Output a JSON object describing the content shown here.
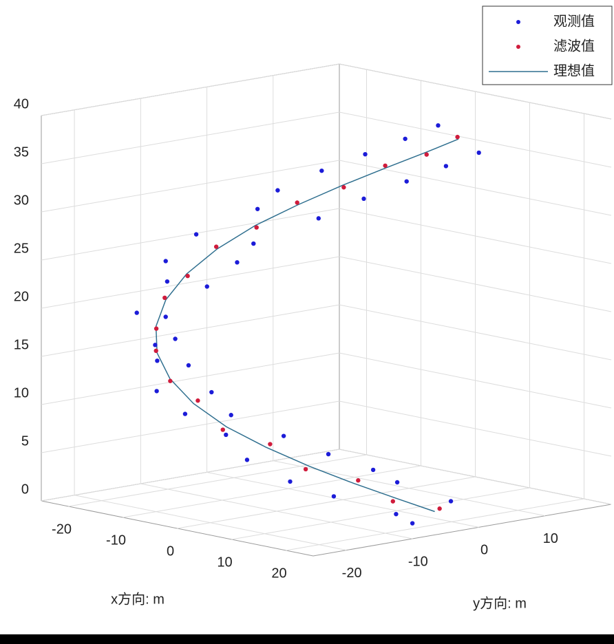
{
  "chart_data": {
    "type": "scatter3d",
    "xlabel": "x方向: m",
    "ylabel": "y方向: m",
    "xlim": [
      -25,
      25
    ],
    "ylim": [
      -25,
      20
    ],
    "zlim": [
      0,
      40
    ],
    "xticks": [
      -20,
      -10,
      0,
      10,
      20
    ],
    "yticks": [
      -20,
      -10,
      0,
      10
    ],
    "zticks": [
      0,
      5,
      10,
      15,
      20,
      25,
      30,
      35,
      40
    ],
    "grid": true,
    "legend": "top-right",
    "series": [
      {
        "name": "观测值",
        "color": "#1c1cd8",
        "mode": "markers",
        "x": [
          24.5,
          21.2,
          23.8,
          20.6,
          21.9,
          18.8,
          15.4,
          18.9,
          14.7,
          11.5,
          9.9,
          6.4,
          4.6,
          1.2,
          -0.6,
          -3.9,
          -5.4,
          -8.8,
          -12.8,
          -9.5,
          -12.6,
          -16.1,
          -18.2,
          -14.5,
          -15.3,
          -18.8,
          -18.0,
          -14.6,
          -12.5,
          -16.0,
          -12.9,
          -9.3,
          -5.2,
          -8.8,
          -4.0,
          -0.4,
          4.8,
          1.2
        ],
        "y": [
          -3.8,
          -6.9,
          -11.5,
          -8.7,
          -13.4,
          -16.8,
          -20.6,
          -17.7,
          -21.0,
          -23.9,
          -25.0,
          -22.9,
          -23.6,
          -24.8,
          -22.8,
          -24.9,
          -23.9,
          -20.8,
          -20.6,
          -17.5,
          -16.4,
          -13.3,
          -11.8,
          -8.6,
          -3.4,
          -6.7,
          1.9,
          -1.5,
          6.6,
          3.3,
          7.4,
          10.8,
          13.9,
          10.6,
          12.7,
          15.9,
          16.6,
          13.4
        ],
        "z": [
          3.1,
          0.8,
          2.6,
          5.2,
          7.2,
          4.5,
          6.1,
          9.0,
          10.8,
          8.3,
          12.9,
          10.2,
          14.5,
          12.0,
          16.6,
          13.8,
          18.3,
          15.9,
          20.4,
          17.7,
          19.5,
          22.4,
          24.1,
          21.5,
          23.3,
          26.2,
          27.9,
          25.1,
          27.0,
          29.9,
          31.8,
          28.9,
          30.8,
          33.6,
          35.5,
          32.7,
          34.6,
          37.4
        ]
      },
      {
        "name": "滤波值",
        "color": "#d01c3c",
        "mode": "markers",
        "x": [
          23.4,
          22.0,
          20.6,
          16.8,
          13.3,
          7.9,
          3.3,
          -2.5,
          -6.7,
          -11.4,
          -14.0,
          -16.6,
          -16.7,
          -16.6,
          -14.0,
          -11.4,
          -6.7,
          -2.5,
          3.3
        ],
        "y": [
          -4.6,
          -10.5,
          -14.6,
          -19.4,
          -21.9,
          -24.6,
          -24.6,
          -24.0,
          -22.7,
          -18.8,
          -15.4,
          -9.8,
          -5.4,
          0.6,
          4.6,
          9.5,
          11.9,
          14.7,
          14.6
        ],
        "z": [
          2.3,
          3.6,
          6.1,
          7.4,
          9.9,
          11.1,
          13.6,
          14.9,
          17.4,
          18.7,
          21.2,
          22.5,
          25.0,
          26.3,
          28.7,
          30.0,
          32.5,
          33.8,
          36.3
        ]
      },
      {
        "name": "理想值",
        "color": "#2f6f8f",
        "mode": "line",
        "x": [
          23,
          22.3,
          20.3,
          17.1,
          13,
          8.2,
          3,
          -2.2,
          -7,
          -11.1,
          -14.3,
          -16.3,
          -17,
          -16.3,
          -14.3,
          -11.1,
          -7,
          -2.2,
          3
        ],
        "y": [
          -5,
          -10.2,
          -15,
          -19.1,
          -22.3,
          -24.3,
          -25,
          -24.3,
          -22.3,
          -19.1,
          -15,
          -10.2,
          -5,
          0.2,
          5,
          9.1,
          12.3,
          14.3,
          15
        ],
        "z": [
          2,
          3.9,
          5.8,
          7.7,
          9.6,
          11.4,
          13.3,
          15.2,
          17.1,
          19,
          20.9,
          22.8,
          24.7,
          26.6,
          28.4,
          30.3,
          32.2,
          34.1,
          36
        ]
      }
    ]
  }
}
